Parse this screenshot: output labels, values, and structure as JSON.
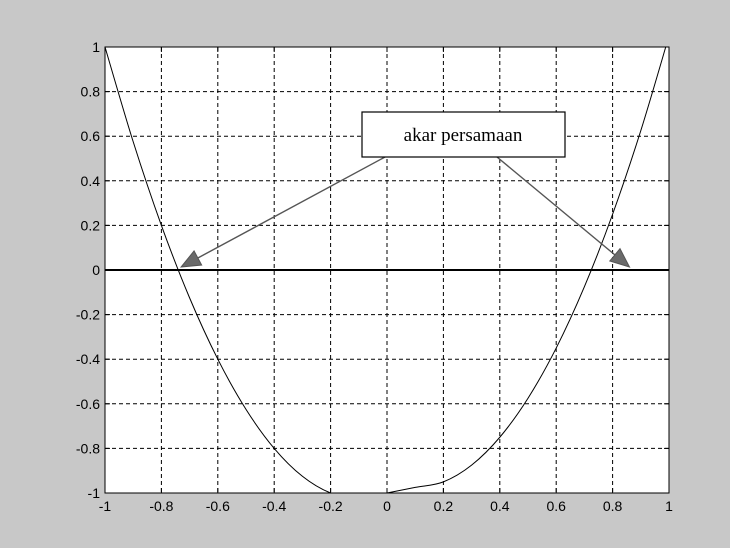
{
  "chart_data": {
    "type": "line",
    "title": "",
    "xlabel": "",
    "ylabel": "",
    "xlim": [
      -1,
      1
    ],
    "ylim": [
      -1,
      1
    ],
    "grid": true,
    "xticks": [
      "-1",
      "-0.8",
      "-0.6",
      "-0.4",
      "-0.2",
      "0",
      "0.2",
      "0.4",
      "0.6",
      "0.8",
      "1"
    ],
    "yticks": [
      "1",
      "0.8",
      "0.6",
      "0.4",
      "0.2",
      "0",
      "-0.2",
      "-0.4",
      "-0.6",
      "-0.8",
      "-1"
    ],
    "series": [
      {
        "color": "#000000",
        "x": [
          -1.0,
          -0.9,
          -0.8,
          -0.7,
          -0.6,
          -0.5,
          -0.4,
          -0.3,
          -0.2,
          -0.1,
          0.0,
          0.1,
          0.2,
          0.3,
          0.4,
          0.5,
          0.6,
          0.7,
          0.8,
          0.9,
          1.0
        ],
        "y": [
          1.0,
          0.575,
          0.2,
          -0.125,
          -0.4,
          -0.625,
          -0.8,
          -0.925,
          -1.0,
          -1.025,
          -1.0,
          -0.975,
          -0.95,
          -0.875,
          -0.75,
          -0.575,
          -0.35,
          -0.075,
          0.25,
          0.625,
          1.05
        ]
      }
    ],
    "reference_line": {
      "y": 0,
      "color": "#000000"
    },
    "annotation": {
      "text": "akar persamaan",
      "arrow_targets": [
        {
          "x": -0.73,
          "y": 0.0
        },
        {
          "x": 0.86,
          "y": 0.0
        }
      ]
    }
  }
}
